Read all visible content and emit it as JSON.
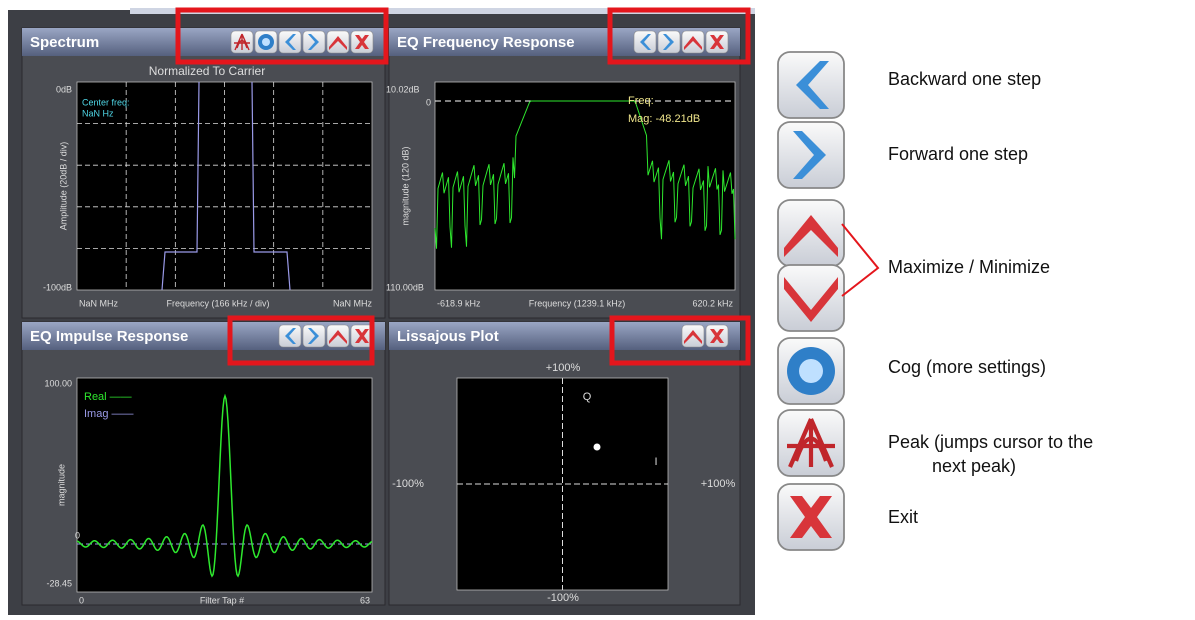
{
  "panels": [
    {
      "title": "Spectrum",
      "plot_title": "Normalized To Carrier",
      "y_label": "Amplitude (20dB / div)",
      "x_label": "Frequency (166 kHz / div)",
      "y_top": "0dB",
      "y_bottom": "-100dB",
      "x_left": "NaN MHz",
      "x_right": "NaN MHz",
      "annotations": [
        "Center freq:",
        "NaN Hz"
      ]
    },
    {
      "title": "EQ Frequency Response",
      "y_label": "magnitude (120 dB)",
      "x_label": "Frequency (1239.1 kHz)",
      "y_top": "10.02dB",
      "y_zero": "0",
      "y_bottom": "110.00dB",
      "x_left": "-618.9 kHz",
      "x_right": "620.2 kHz",
      "annotations": [
        "Freq:",
        "Mag: -48.21dB"
      ]
    },
    {
      "title": "EQ Impulse Response",
      "y_label": "magnitude",
      "x_label": "Filter Tap #",
      "y_top": "100.00",
      "y_zero": "0",
      "y_bottom": "-28.45",
      "x_left": "0",
      "x_right": "63",
      "annotations": [
        "Real ——",
        "Imag ——"
      ]
    },
    {
      "title": "Lissajous Plot",
      "y_top": "+100%",
      "y_bottom": "-100%",
      "x_left": "-100%",
      "x_right": "+100%",
      "annotations": [
        "Q",
        "I"
      ]
    }
  ],
  "legend": [
    {
      "label": [
        "Backward one step"
      ]
    },
    {
      "label": [
        "Forward one step"
      ]
    },
    {
      "label": [
        "Maximize / Minimize"
      ]
    },
    {
      "label": [
        "Cog (more settings)"
      ]
    },
    {
      "label": [
        "Peak (jumps cursor to the",
        "next peak)"
      ]
    },
    {
      "label": [
        "Exit"
      ]
    }
  ]
}
